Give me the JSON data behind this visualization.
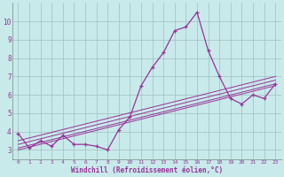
{
  "bg_color": "#c8eaea",
  "grid_color": "#9fbfbf",
  "line_color": "#993399",
  "xlabel": "Windchill (Refroidissement éolien,°C)",
  "xlim": [
    -0.5,
    23.5
  ],
  "ylim": [
    2.5,
    11.0
  ],
  "yticks": [
    3,
    4,
    5,
    6,
    7,
    8,
    9,
    10
  ],
  "xticks": [
    0,
    1,
    2,
    3,
    4,
    5,
    6,
    7,
    8,
    9,
    10,
    11,
    12,
    13,
    14,
    15,
    16,
    17,
    18,
    19,
    20,
    21,
    22,
    23
  ],
  "main_series": [
    3.9,
    3.1,
    3.5,
    3.2,
    3.8,
    3.3,
    3.3,
    3.2,
    3.0,
    4.1,
    4.8,
    6.5,
    7.5,
    8.3,
    9.5,
    9.7,
    10.5,
    8.4,
    7.0,
    5.8,
    5.5,
    6.0,
    5.8,
    6.6
  ],
  "trend_lines": [
    {
      "x": [
        0,
        23
      ],
      "y": [
        3.0,
        6.5
      ]
    },
    {
      "x": [
        0,
        23
      ],
      "y": [
        3.1,
        6.6
      ]
    },
    {
      "x": [
        0,
        23
      ],
      "y": [
        3.3,
        6.8
      ]
    },
    {
      "x": [
        0,
        23
      ],
      "y": [
        3.5,
        7.0
      ]
    }
  ]
}
